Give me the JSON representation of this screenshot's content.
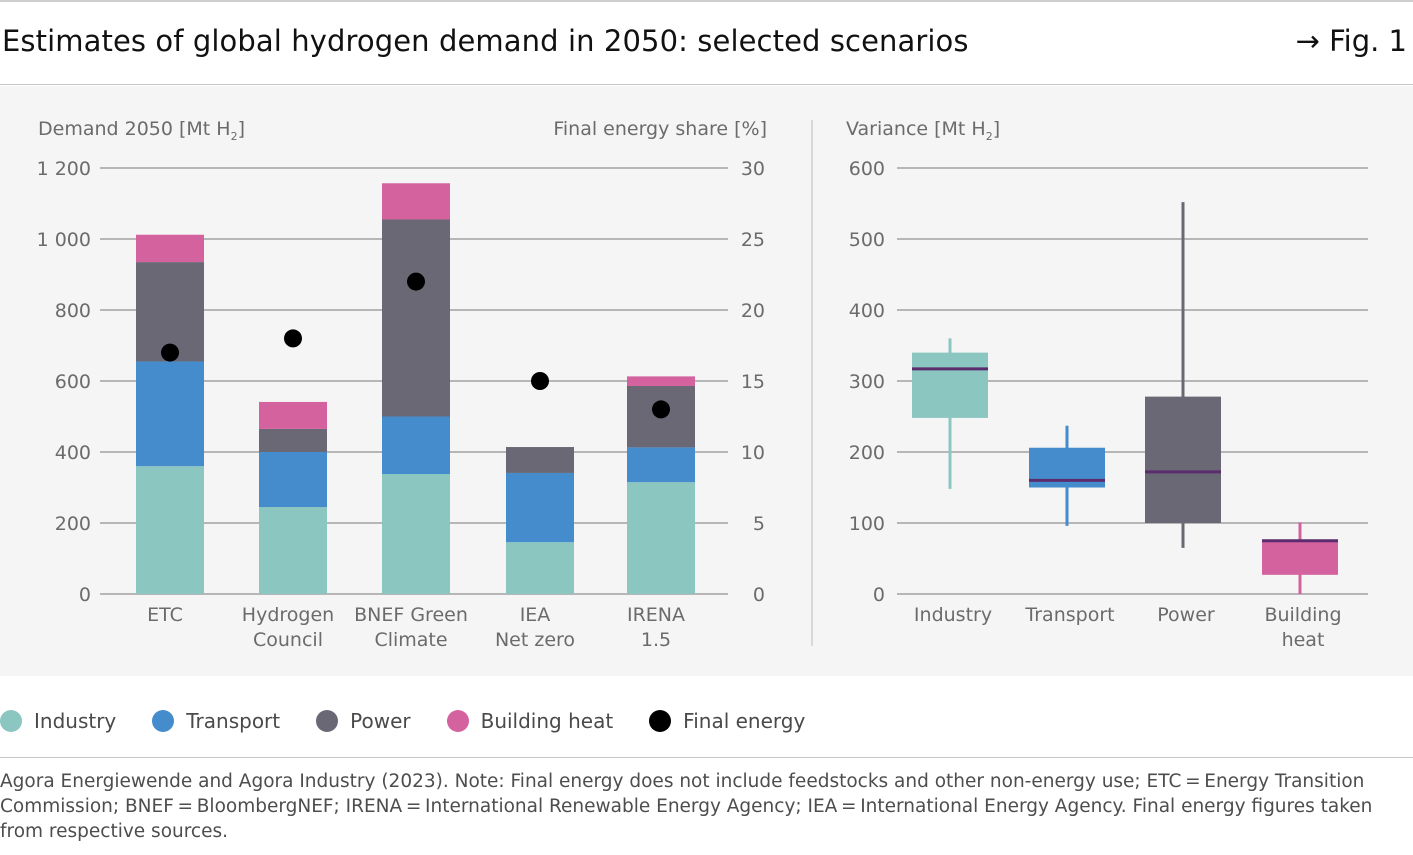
{
  "header": {
    "title": "Estimates of global hydrogen demand in 2050: selected scenarios",
    "figure_ref": "→ Fig. 1"
  },
  "colors": {
    "industry": "#8bc6c1",
    "transport": "#458ccc",
    "power": "#696874",
    "building_heat": "#d4629e",
    "final_energy": "#000000",
    "median_line": "#5b2d6e",
    "axis_text": "#6b6b6b",
    "grid_line": "#777777"
  },
  "chart_data": [
    {
      "type": "bar",
      "stacked": true,
      "ylabel": "Demand 2050 [Mt H",
      "ylabel_sub": "2",
      "ylabel_close": "]",
      "y2label": "Final energy share [%]",
      "ylim": [
        0,
        1200
      ],
      "y2lim": [
        0,
        30
      ],
      "yticks": [
        0,
        200,
        400,
        600,
        800,
        1000,
        1200
      ],
      "ytick_labels": [
        "0",
        "200",
        "400",
        "600",
        "800",
        "1 000",
        "1 200"
      ],
      "y2ticks": [
        0,
        5,
        10,
        15,
        20,
        25,
        30
      ],
      "y2tick_labels": [
        "0",
        "5",
        "10",
        "15",
        "20",
        "25",
        "30"
      ],
      "categories": [
        [
          "ETC"
        ],
        [
          "Hydrogen",
          "Council"
        ],
        [
          "BNEF Green",
          "Climate"
        ],
        [
          "IEA",
          "Net zero"
        ],
        [
          "IRENA",
          "1.5"
        ]
      ],
      "series": [
        {
          "name": "Industry",
          "key": "industry",
          "values": [
            360,
            245,
            338,
            146,
            315
          ]
        },
        {
          "name": "Transport",
          "key": "transport",
          "values": [
            295,
            155,
            162,
            195,
            98
          ]
        },
        {
          "name": "Power",
          "key": "power",
          "values": [
            280,
            65,
            555,
            73,
            173
          ]
        },
        {
          "name": "Building heat",
          "key": "building_heat",
          "values": [
            77,
            76,
            102,
            0,
            27
          ]
        }
      ],
      "final_energy": {
        "name": "Final energy",
        "axis": "y2",
        "values": [
          17,
          18,
          22,
          15,
          13
        ]
      }
    },
    {
      "type": "box",
      "ylabel": "Variance [Mt H",
      "ylabel_sub": "2",
      "ylabel_close": "]",
      "ylim": [
        0,
        600
      ],
      "yticks": [
        0,
        100,
        200,
        300,
        400,
        500,
        600
      ],
      "ytick_labels": [
        "0",
        "100",
        "200",
        "300",
        "400",
        "500",
        "600"
      ],
      "categories": [
        [
          "Industry"
        ],
        [
          "Transport"
        ],
        [
          "Power"
        ],
        [
          "Building",
          "heat"
        ]
      ],
      "boxes": [
        {
          "key": "industry",
          "min": 148,
          "q1": 248,
          "median": 317,
          "q3": 340,
          "max": 360
        },
        {
          "key": "transport",
          "min": 96,
          "q1": 150,
          "median": 160,
          "q3": 206,
          "max": 237
        },
        {
          "key": "power",
          "min": 65,
          "q1": 100,
          "median": 172,
          "q3": 278,
          "max": 552
        },
        {
          "key": "building_heat",
          "min": 0,
          "q1": 27,
          "median": 75,
          "q3": 75,
          "max": 101
        }
      ]
    }
  ],
  "legend": [
    {
      "key": "industry",
      "label": "Industry"
    },
    {
      "key": "transport",
      "label": "Transport"
    },
    {
      "key": "power",
      "label": "Power"
    },
    {
      "key": "building_heat",
      "label": "Building heat"
    },
    {
      "key": "final_energy",
      "label": "Final energy"
    }
  ],
  "footnote": "Agora Energiewende and Agora Industry (2023). Note: Final energy does not include feedstocks and other non-energy use; ETC = Energy Transition Commission; BNEF = BloombergNEF; IRENA = International Renewable Energy Agency; IEA = International Energy Agency. Final energy figures taken from respective sources."
}
